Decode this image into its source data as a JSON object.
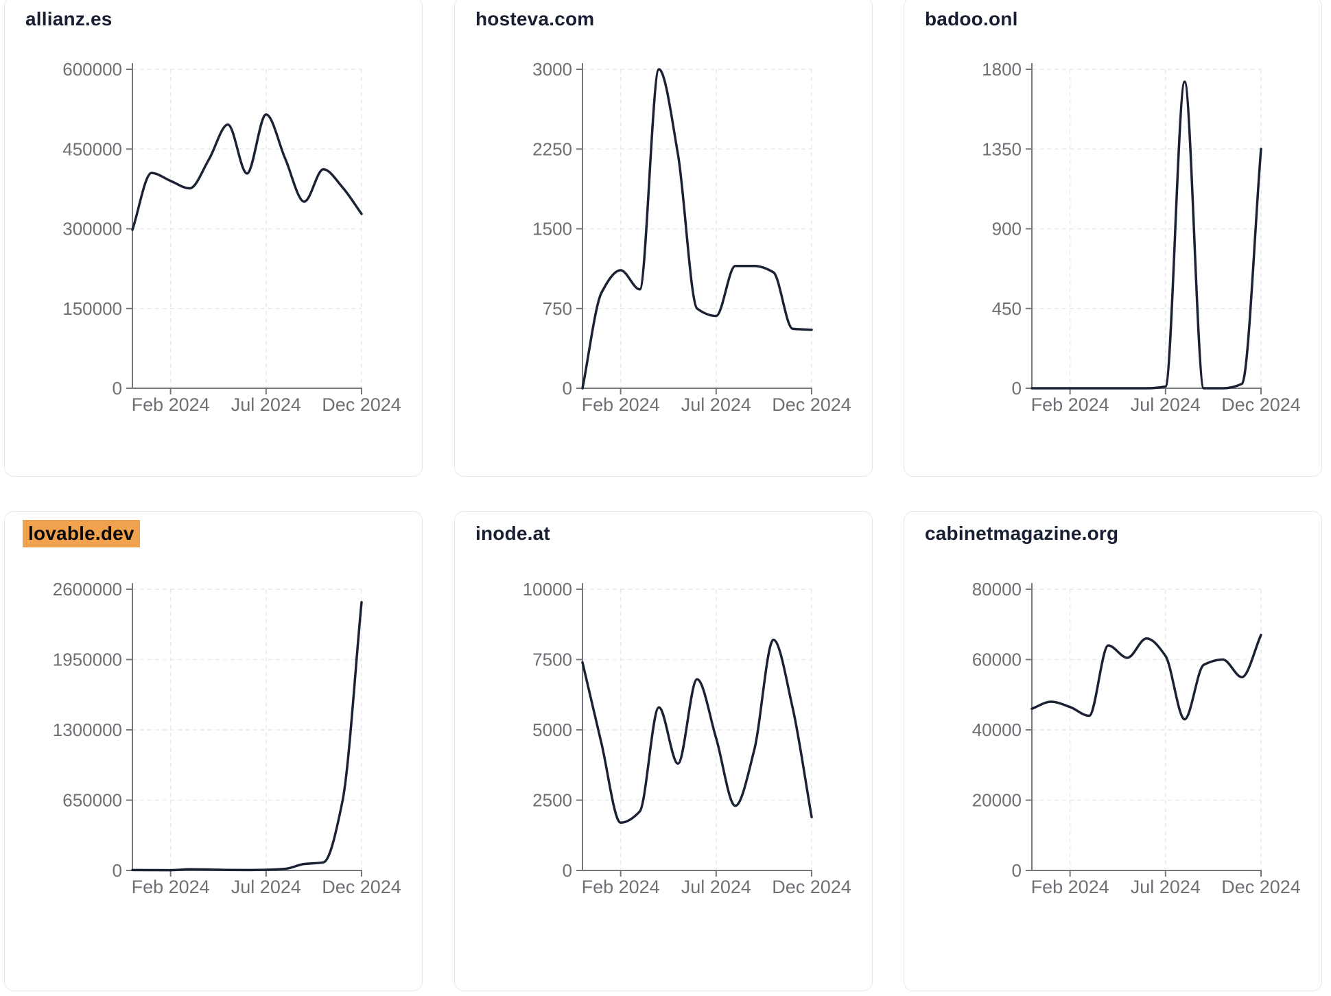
{
  "theme": {
    "line_color": "#1b2234",
    "title_color": "#191f33",
    "tick_label_color": "#6e7075",
    "axis_color": "#77787c",
    "grid_color": "#e8e9ed",
    "card_border_color": "#e4e8f2",
    "card_background": "#ffffff",
    "page_background": "#ffffff",
    "highlight_color": "#f1a24e"
  },
  "x_months": [
    "Dec 2023",
    "Jan 2024",
    "Feb 2024",
    "Mar 2024",
    "Apr 2024",
    "May 2024",
    "Jun 2024",
    "Jul 2024",
    "Aug 2024",
    "Sep 2024",
    "Oct 2024",
    "Nov 2024",
    "Dec 2024"
  ],
  "chart_data": [
    {
      "type": "line",
      "title": "allianz.es",
      "highlighted": false,
      "x_tick_labels": [
        "Feb 2024",
        "Jul 2024",
        "Dec 2024"
      ],
      "y_tick_labels": [
        "0",
        "150000",
        "300000",
        "450000",
        "600000"
      ],
      "y_ticks": [
        0,
        150000,
        300000,
        450000,
        600000
      ],
      "ylim": [
        0,
        600000
      ],
      "x": [
        "Dec 2023",
        "Jan 2024",
        "Feb 2024",
        "Mar 2024",
        "Apr 2024",
        "May 2024",
        "Jun 2024",
        "Jul 2024",
        "Aug 2024",
        "Sep 2024",
        "Oct 2024",
        "Nov 2024",
        "Dec 2024"
      ],
      "values": [
        298000,
        405000,
        390000,
        376000,
        430000,
        496000,
        404000,
        515000,
        432000,
        351000,
        412000,
        378000,
        328000
      ]
    },
    {
      "type": "line",
      "title": "hosteva.com",
      "highlighted": false,
      "x_tick_labels": [
        "Feb 2024",
        "Jul 2024",
        "Dec 2024"
      ],
      "y_tick_labels": [
        "0",
        "750",
        "1500",
        "2250",
        "3000"
      ],
      "y_ticks": [
        0,
        750,
        1500,
        2250,
        3000
      ],
      "ylim": [
        0,
        3000
      ],
      "x": [
        "Dec 2023",
        "Jan 2024",
        "Feb 2024",
        "Mar 2024",
        "Apr 2024",
        "May 2024",
        "Jun 2024",
        "Jul 2024",
        "Aug 2024",
        "Sep 2024",
        "Oct 2024",
        "Nov 2024",
        "Dec 2024"
      ],
      "values": [
        0,
        900,
        1110,
        930,
        3000,
        2200,
        750,
        680,
        1150,
        1150,
        1090,
        560,
        550
      ]
    },
    {
      "type": "line",
      "title": "badoo.onl",
      "highlighted": false,
      "x_tick_labels": [
        "Feb 2024",
        "Jul 2024",
        "Dec 2024"
      ],
      "y_tick_labels": [
        "0",
        "450",
        "900",
        "1350",
        "1800"
      ],
      "y_ticks": [
        0,
        450,
        900,
        1350,
        1800
      ],
      "ylim": [
        0,
        1800
      ],
      "x": [
        "Dec 2023",
        "Jan 2024",
        "Feb 2024",
        "Mar 2024",
        "Apr 2024",
        "May 2024",
        "Jun 2024",
        "Jul 2024",
        "Aug 2024",
        "Sep 2024",
        "Oct 2024",
        "Nov 2024",
        "Dec 2024"
      ],
      "values": [
        0,
        0,
        0,
        0,
        0,
        0,
        0,
        10,
        1730,
        0,
        0,
        25,
        1350
      ]
    },
    {
      "type": "line",
      "title": "lovable.dev",
      "highlighted": true,
      "x_tick_labels": [
        "Feb 2024",
        "Jul 2024",
        "Dec 2024"
      ],
      "y_tick_labels": [
        "0",
        "650000",
        "1300000",
        "1950000",
        "2600000"
      ],
      "y_ticks": [
        0,
        650000,
        1300000,
        1950000,
        2600000
      ],
      "ylim": [
        0,
        2600000
      ],
      "x": [
        "Dec 2023",
        "Jan 2024",
        "Feb 2024",
        "Mar 2024",
        "Apr 2024",
        "May 2024",
        "Jun 2024",
        "Jul 2024",
        "Aug 2024",
        "Sep 2024",
        "Oct 2024",
        "Nov 2024",
        "Dec 2024"
      ],
      "values": [
        4000,
        3000,
        2500,
        11000,
        9000,
        5000,
        4000,
        6000,
        15000,
        60000,
        75000,
        640000,
        2480000
      ]
    },
    {
      "type": "line",
      "title": "inode.at",
      "highlighted": false,
      "x_tick_labels": [
        "Feb 2024",
        "Jul 2024",
        "Dec 2024"
      ],
      "y_tick_labels": [
        "0",
        "2500",
        "5000",
        "7500",
        "10000"
      ],
      "y_ticks": [
        0,
        2500,
        5000,
        7500,
        10000
      ],
      "ylim": [
        0,
        10000
      ],
      "x": [
        "Dec 2023",
        "Jan 2024",
        "Feb 2024",
        "Mar 2024",
        "Apr 2024",
        "May 2024",
        "Jun 2024",
        "Jul 2024",
        "Aug 2024",
        "Sep 2024",
        "Oct 2024",
        "Nov 2024",
        "Dec 2024"
      ],
      "values": [
        7400,
        4500,
        1700,
        2100,
        5800,
        3800,
        6800,
        4700,
        2300,
        4300,
        8200,
        5800,
        1900
      ]
    },
    {
      "type": "line",
      "title": "cabinetmagazine.org",
      "highlighted": false,
      "x_tick_labels": [
        "Feb 2024",
        "Jul 2024",
        "Dec 2024"
      ],
      "y_tick_labels": [
        "0",
        "20000",
        "40000",
        "60000",
        "80000"
      ],
      "y_ticks": [
        0,
        20000,
        40000,
        60000,
        80000
      ],
      "ylim": [
        0,
        80000
      ],
      "x": [
        "Dec 2023",
        "Jan 2024",
        "Feb 2024",
        "Mar 2024",
        "Apr 2024",
        "May 2024",
        "Jun 2024",
        "Jul 2024",
        "Aug 2024",
        "Sep 2024",
        "Oct 2024",
        "Nov 2024",
        "Dec 2024"
      ],
      "values": [
        46000,
        48000,
        46500,
        44000,
        64000,
        60500,
        66000,
        61000,
        43000,
        58500,
        60000,
        55000,
        67000
      ]
    }
  ]
}
